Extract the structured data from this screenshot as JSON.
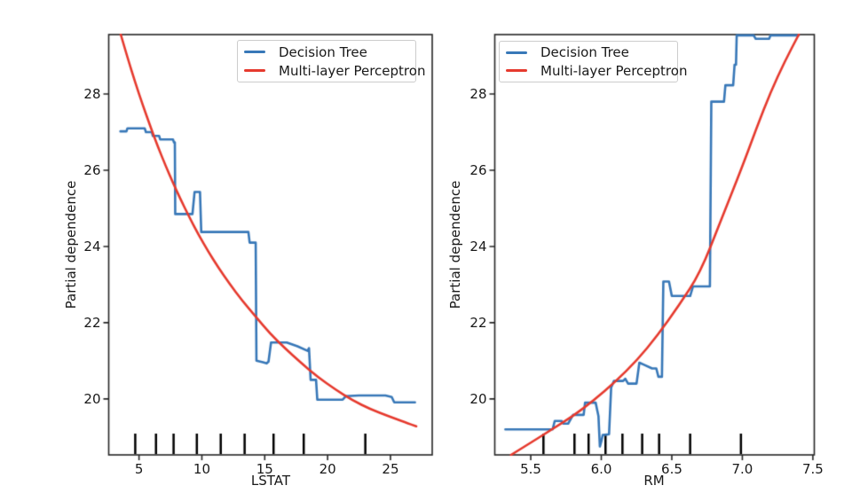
{
  "figure": {
    "background": "#ffffff"
  },
  "legend": {
    "items": [
      {
        "label": "Decision Tree",
        "color": "#3878b8"
      },
      {
        "label": "Multi-layer Perceptron",
        "color": "#e63a2e"
      }
    ]
  },
  "chart_data": [
    {
      "type": "line",
      "title": "",
      "xlabel": "LSTAT",
      "ylabel": "Partial dependence",
      "xlim": [
        2.59,
        28.32
      ],
      "ylim": [
        18.53,
        29.56
      ],
      "x_ticks": [
        5,
        10,
        15,
        20,
        25
      ],
      "x_tick_labels": [
        "5",
        "10",
        "15",
        "20",
        "25"
      ],
      "y_ticks": [
        20,
        22,
        24,
        26,
        28
      ],
      "y_tick_labels": [
        "20",
        "22",
        "24",
        "26",
        "28"
      ],
      "grid": false,
      "legend_position": "upper-right",
      "rug_x": [
        4.7,
        6.35,
        7.75,
        9.6,
        11.5,
        13.4,
        15.7,
        18.1,
        23.0
      ],
      "series": [
        {
          "name": "Decision Tree",
          "color": "#3878b8",
          "smooth": false,
          "x": [
            3.52,
            4.0,
            4.08,
            5.45,
            5.55,
            6.02,
            6.1,
            6.6,
            6.68,
            7.7,
            7.78,
            7.85,
            7.88,
            9.25,
            9.42,
            9.85,
            9.95,
            13.7,
            13.8,
            14.28,
            14.34,
            14.85,
            15.15,
            15.3,
            15.5,
            16.75,
            17.6,
            18.4,
            18.52,
            18.65,
            19.08,
            19.18,
            21.2,
            21.45,
            22.5,
            24.6,
            25.1,
            25.3,
            26.95
          ],
          "y": [
            27.02,
            27.02,
            27.1,
            27.1,
            27.0,
            27.0,
            26.9,
            26.9,
            26.81,
            26.81,
            26.73,
            26.73,
            24.85,
            24.85,
            25.43,
            25.43,
            24.38,
            24.38,
            24.1,
            24.1,
            21.0,
            20.96,
            20.93,
            20.98,
            21.48,
            21.48,
            21.38,
            21.26,
            21.33,
            20.5,
            20.5,
            19.98,
            19.98,
            20.07,
            20.09,
            20.09,
            20.05,
            19.91,
            19.91
          ]
        },
        {
          "name": "Multi-layer Perceptron",
          "color": "#e63a2e",
          "smooth": true,
          "x": [
            3.55,
            4.1,
            4.7,
            5.3,
            5.9,
            6.5,
            7.1,
            7.7,
            8.3,
            9.0,
            9.7,
            10.5,
            11.3,
            12.2,
            13.2,
            14.3,
            15.4,
            16.6,
            17.9,
            19.2,
            20.6,
            22.0,
            23.4,
            24.8,
            26.2,
            27.05
          ],
          "y": [
            29.56,
            28.94,
            28.3,
            27.71,
            27.15,
            26.62,
            26.13,
            25.67,
            25.24,
            24.77,
            24.33,
            23.87,
            23.45,
            23.02,
            22.58,
            22.15,
            21.72,
            21.33,
            20.94,
            20.58,
            20.25,
            19.96,
            19.73,
            19.55,
            19.38,
            19.28
          ]
        }
      ]
    },
    {
      "type": "line",
      "title": "",
      "xlabel": "RM",
      "ylabel": "Partial dependence",
      "xlim": [
        5.245,
        7.51
      ],
      "ylim": [
        18.53,
        29.56
      ],
      "x_ticks": [
        5.5,
        6.0,
        6.5,
        7.0,
        7.5
      ],
      "x_tick_labels": [
        "5.5",
        "6.0",
        "6.5",
        "7.0",
        "7.5"
      ],
      "y_ticks": [
        20,
        22,
        24,
        26,
        28
      ],
      "y_tick_labels": [
        "20",
        "22",
        "24",
        "26",
        "28"
      ],
      "grid": false,
      "legend_position": "upper-left",
      "rug_x": [
        5.59,
        5.81,
        5.91,
        6.03,
        6.15,
        6.29,
        6.41,
        6.63,
        6.99
      ],
      "series": [
        {
          "name": "Decision Tree",
          "color": "#3878b8",
          "smooth": false,
          "x": [
            5.32,
            5.655,
            5.67,
            5.72,
            5.73,
            5.765,
            5.8,
            5.875,
            5.885,
            5.96,
            5.98,
            5.99,
            6.0,
            6.01,
            6.055,
            6.07,
            6.09,
            6.155,
            6.17,
            6.19,
            6.25,
            6.27,
            6.3,
            6.36,
            6.39,
            6.405,
            6.43,
            6.44,
            6.48,
            6.5,
            6.63,
            6.65,
            6.77,
            6.78,
            6.87,
            6.88,
            6.935,
            6.945,
            6.955,
            6.96,
            7.08,
            7.095,
            7.19,
            7.2,
            7.4
          ],
          "y": [
            19.2,
            19.2,
            19.42,
            19.42,
            19.35,
            19.35,
            19.58,
            19.58,
            19.9,
            19.9,
            19.55,
            18.75,
            18.88,
            19.05,
            19.07,
            20.3,
            20.47,
            20.47,
            20.53,
            20.4,
            20.4,
            20.95,
            20.9,
            20.8,
            20.8,
            20.58,
            20.58,
            23.08,
            23.08,
            22.7,
            22.7,
            22.95,
            22.95,
            27.8,
            27.8,
            28.23,
            28.23,
            28.77,
            28.77,
            29.54,
            29.54,
            29.45,
            29.45,
            29.54,
            29.54
          ]
        },
        {
          "name": "Multi-layer Perceptron",
          "color": "#e63a2e",
          "smooth": true,
          "x": [
            5.36,
            5.5,
            5.65,
            5.8,
            5.95,
            6.1,
            6.25,
            6.4,
            6.55,
            6.7,
            6.85,
            7.0,
            7.1,
            7.2,
            7.3,
            7.4
          ],
          "y": [
            18.53,
            18.85,
            19.2,
            19.55,
            19.97,
            20.45,
            21.0,
            21.67,
            22.45,
            23.3,
            24.7,
            26.1,
            27.1,
            28.05,
            28.85,
            29.56
          ]
        }
      ]
    }
  ]
}
